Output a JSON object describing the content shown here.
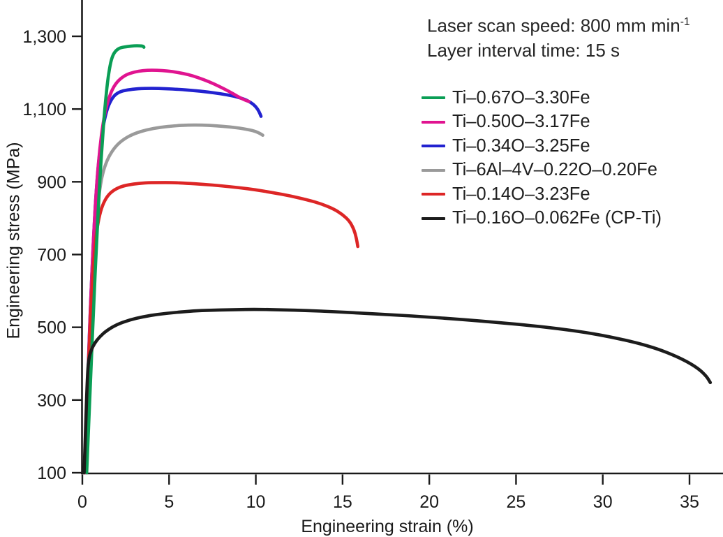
{
  "figure": {
    "annotation": {
      "line1_main": "Laser scan speed: 800 mm min",
      "line1_sup": "-1",
      "line2": "Layer interval time: 15 s"
    }
  },
  "chart_data": {
    "type": "line",
    "title": "",
    "xlabel": "Engineering strain (%)",
    "ylabel": "Engineering stress (MPa)",
    "xlim": [
      0,
      37
    ],
    "ylim": [
      100,
      1390
    ],
    "x_ticks": [
      0,
      5,
      10,
      15,
      20,
      25,
      30,
      35
    ],
    "y_ticks": [
      100,
      300,
      500,
      700,
      900,
      1100,
      1300
    ],
    "y_tick_labels": [
      "100",
      "300",
      "500",
      "700",
      "900",
      "1,100",
      "1,300"
    ],
    "grid": false,
    "legend_position": "upper right",
    "axis_color": "#1a1a1a",
    "series": [
      {
        "name": "Ti–0.67O–3.30Fe",
        "color": "#0a9e55",
        "points": [
          [
            0.25,
            100
          ],
          [
            0.45,
            330
          ],
          [
            0.65,
            560
          ],
          [
            0.85,
            760
          ],
          [
            1.0,
            900
          ],
          [
            1.15,
            1010
          ],
          [
            1.3,
            1105
          ],
          [
            1.45,
            1175
          ],
          [
            1.6,
            1222
          ],
          [
            1.75,
            1248
          ],
          [
            1.95,
            1262
          ],
          [
            2.2,
            1269
          ],
          [
            2.6,
            1272
          ],
          [
            3.0,
            1274
          ],
          [
            3.3,
            1274
          ],
          [
            3.5,
            1273
          ],
          [
            3.55,
            1270
          ]
        ]
      },
      {
        "name": "Ti–0.50O–3.17Fe",
        "color": "#e01490",
        "points": [
          [
            0.15,
            100
          ],
          [
            0.3,
            330
          ],
          [
            0.5,
            600
          ],
          [
            0.7,
            800
          ],
          [
            0.85,
            910
          ],
          [
            1.0,
            990
          ],
          [
            1.2,
            1065
          ],
          [
            1.45,
            1120
          ],
          [
            1.75,
            1158
          ],
          [
            2.1,
            1180
          ],
          [
            2.5,
            1194
          ],
          [
            3.0,
            1202
          ],
          [
            3.5,
            1206
          ],
          [
            4.0,
            1207
          ],
          [
            4.6,
            1206
          ],
          [
            5.2,
            1203
          ],
          [
            5.8,
            1198
          ],
          [
            6.4,
            1191
          ],
          [
            7.0,
            1181
          ],
          [
            7.6,
            1169
          ],
          [
            8.2,
            1155
          ],
          [
            8.7,
            1142
          ],
          [
            9.1,
            1131
          ],
          [
            9.4,
            1124
          ],
          [
            9.6,
            1121
          ]
        ]
      },
      {
        "name": "Ti–0.34O–3.25Fe",
        "color": "#2222d0",
        "points": [
          [
            0.13,
            100
          ],
          [
            0.3,
            340
          ],
          [
            0.5,
            600
          ],
          [
            0.68,
            780
          ],
          [
            0.82,
            890
          ],
          [
            1.0,
            985
          ],
          [
            1.2,
            1055
          ],
          [
            1.45,
            1105
          ],
          [
            1.75,
            1133
          ],
          [
            2.1,
            1147
          ],
          [
            2.6,
            1153
          ],
          [
            3.2,
            1156
          ],
          [
            4.0,
            1157
          ],
          [
            4.8,
            1156
          ],
          [
            5.6,
            1154
          ],
          [
            6.4,
            1151
          ],
          [
            7.2,
            1147
          ],
          [
            8.0,
            1142
          ],
          [
            8.7,
            1136
          ],
          [
            9.3,
            1128
          ],
          [
            9.7,
            1119
          ],
          [
            10.0,
            1107
          ],
          [
            10.2,
            1092
          ],
          [
            10.3,
            1080
          ]
        ]
      },
      {
        "name": "Ti–6Al–4V–0.22O–0.20Fe",
        "color": "#9a9a9a",
        "points": [
          [
            0.12,
            100
          ],
          [
            0.3,
            320
          ],
          [
            0.5,
            560
          ],
          [
            0.7,
            730
          ],
          [
            0.85,
            820
          ],
          [
            1.0,
            880
          ],
          [
            1.2,
            930
          ],
          [
            1.5,
            968
          ],
          [
            1.9,
            997
          ],
          [
            2.4,
            1018
          ],
          [
            3.0,
            1033
          ],
          [
            3.7,
            1043
          ],
          [
            4.5,
            1050
          ],
          [
            5.3,
            1054
          ],
          [
            6.1,
            1056
          ],
          [
            6.9,
            1056
          ],
          [
            7.7,
            1054
          ],
          [
            8.5,
            1051
          ],
          [
            9.3,
            1046
          ],
          [
            9.9,
            1040
          ],
          [
            10.25,
            1033
          ],
          [
            10.4,
            1028
          ]
        ]
      },
      {
        "name": "Ti–0.14O–3.23Fe",
        "color": "#dd2626",
        "points": [
          [
            0.12,
            100
          ],
          [
            0.3,
            340
          ],
          [
            0.5,
            560
          ],
          [
            0.65,
            680
          ],
          [
            0.78,
            750
          ],
          [
            0.95,
            800
          ],
          [
            1.15,
            835
          ],
          [
            1.45,
            862
          ],
          [
            1.85,
            879
          ],
          [
            2.35,
            889
          ],
          [
            2.95,
            894
          ],
          [
            3.6,
            897
          ],
          [
            4.4,
            898
          ],
          [
            5.2,
            898
          ],
          [
            6.0,
            896
          ],
          [
            7.0,
            893
          ],
          [
            8.0,
            889
          ],
          [
            9.0,
            884
          ],
          [
            10.0,
            878
          ],
          [
            11.0,
            870
          ],
          [
            12.0,
            861
          ],
          [
            13.0,
            850
          ],
          [
            13.8,
            839
          ],
          [
            14.5,
            825
          ],
          [
            15.0,
            810
          ],
          [
            15.4,
            792
          ],
          [
            15.65,
            770
          ],
          [
            15.8,
            745
          ],
          [
            15.88,
            722
          ]
        ]
      },
      {
        "name": "Ti–0.16O–0.062Fe (CP-Ti)",
        "color": "#1c1c1c",
        "points": [
          [
            0.1,
            100
          ],
          [
            0.2,
            240
          ],
          [
            0.3,
            380
          ],
          [
            0.38,
            415
          ],
          [
            0.5,
            436
          ],
          [
            0.7,
            456
          ],
          [
            1.0,
            474
          ],
          [
            1.4,
            491
          ],
          [
            2.0,
            508
          ],
          [
            2.7,
            520
          ],
          [
            3.5,
            529
          ],
          [
            4.4,
            536
          ],
          [
            5.4,
            541
          ],
          [
            6.4,
            545
          ],
          [
            7.4,
            547
          ],
          [
            8.4,
            548
          ],
          [
            9.4,
            549
          ],
          [
            10.4,
            549
          ],
          [
            11.5,
            548
          ],
          [
            13.0,
            546
          ],
          [
            14.5,
            543
          ],
          [
            16.0,
            539
          ],
          [
            18.0,
            534
          ],
          [
            20.0,
            528
          ],
          [
            22.0,
            521
          ],
          [
            24.0,
            513
          ],
          [
            26.0,
            504
          ],
          [
            27.5,
            496
          ],
          [
            29.0,
            486
          ],
          [
            30.5,
            473
          ],
          [
            32.0,
            457
          ],
          [
            33.2,
            440
          ],
          [
            34.2,
            421
          ],
          [
            35.0,
            402
          ],
          [
            35.6,
            383
          ],
          [
            36.0,
            364
          ],
          [
            36.2,
            348
          ]
        ]
      }
    ]
  }
}
